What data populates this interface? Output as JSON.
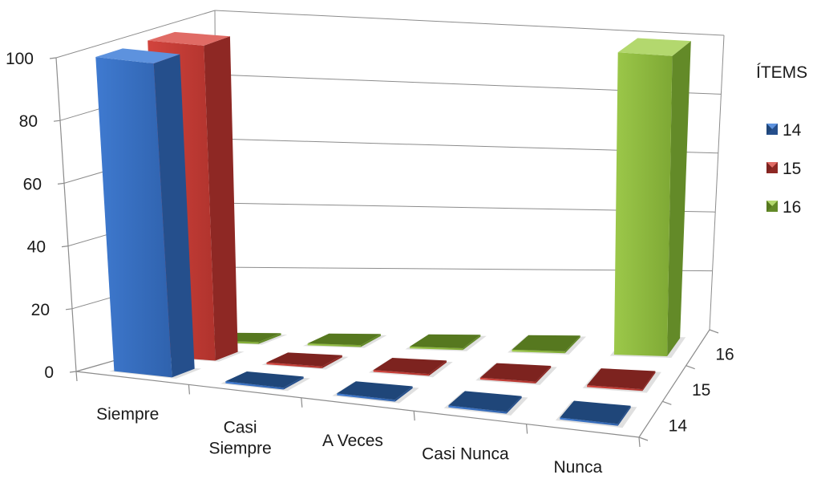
{
  "chart_data": {
    "type": "bar",
    "subtype": "3d-column",
    "categories": [
      "Siempre",
      "Casi Siempre",
      "A Veces",
      "Casi Nunca",
      "Nunca"
    ],
    "series": [
      {
        "name": "14",
        "values": [
          100,
          0,
          0,
          0,
          0
        ],
        "color": "#3a73c4"
      },
      {
        "name": "15",
        "values": [
          100,
          0,
          0,
          0,
          0
        ],
        "color": "#c43a35"
      },
      {
        "name": "16",
        "values": [
          0,
          0,
          0,
          0,
          100
        ],
        "color": "#8cb83c"
      }
    ],
    "ylim": [
      0,
      100
    ],
    "yticks": [
      "0",
      "20",
      "40",
      "60",
      "80",
      "100"
    ],
    "legend_title": "ÍTEMS",
    "legend_position": "right",
    "grid": true
  }
}
